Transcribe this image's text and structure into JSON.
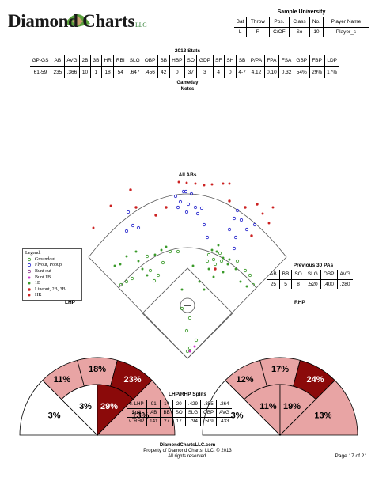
{
  "header": {
    "logo_main": "Diamond Charts",
    "logo_suffix": "LLC",
    "school": "Sample University",
    "info_headers": [
      "Bat",
      "Throw",
      "Pos.",
      "Class",
      "No.",
      "Player Name"
    ],
    "info_values": [
      "L",
      "R",
      "C/OF",
      "So",
      "10",
      "Player_s"
    ]
  },
  "season_stats": {
    "title": "2013 Stats",
    "headers": [
      "GP-GS",
      "AB",
      "AVG",
      "2B",
      "3B",
      "HR",
      "RBI",
      "SLG",
      "OBP",
      "BB",
      "HBP",
      "SO",
      "GDP",
      "SF",
      "SH",
      "SB",
      "P/PA",
      "FPA",
      "FSA",
      "GBP",
      "FBP",
      "LDP"
    ],
    "values": [
      "61-59",
      "235",
      ".366",
      "10",
      "1",
      "18",
      "54",
      ".647",
      ".456",
      "42",
      "0",
      "37",
      "3",
      "4",
      "0",
      "4-7",
      "4.12",
      "0.10",
      "0.32",
      "54%",
      "29%",
      "17%"
    ]
  },
  "gameday": {
    "line1": "Gameday",
    "line2": "Notes"
  },
  "spray_chart": {
    "title": "All ABs"
  },
  "legend": {
    "title": "Legend:",
    "items": [
      {
        "label": "Groundout",
        "color": "#3a9a2a",
        "symbol": "circle-open"
      },
      {
        "label": "Flyout, Popup",
        "color": "#2222cc",
        "symbol": "circle-open"
      },
      {
        "label": "Bunt out",
        "color": "#8a3a8a",
        "symbol": "circle-open"
      },
      {
        "label": "Bunt 1B",
        "color": "#cc33cc",
        "symbol": "star"
      },
      {
        "label": "1B",
        "color": "#3a9a2a",
        "symbol": "star"
      },
      {
        "label": "Lineout, 2B, 3B",
        "color": "#cc2222",
        "symbol": "dot"
      },
      {
        "label": "HR",
        "color": "#cc2222",
        "symbol": "star"
      }
    ]
  },
  "previous_pas": {
    "title": "Previous 30 PAs",
    "headers": [
      "AB",
      "BB",
      "SO",
      "SLG",
      "OBP",
      "AVG"
    ],
    "values": [
      "25",
      "5",
      "8",
      ".520",
      ".400",
      ".280"
    ]
  },
  "lhp": {
    "label": "LHP",
    "zones": {
      "outer_left": "11%",
      "outer_center": "18%",
      "outer_right": "23%",
      "inner_far_left": "3%",
      "inner_left": "3%",
      "inner_center": "29%",
      "inner_right": "13%"
    }
  },
  "rhp": {
    "label": "RHP",
    "zones": {
      "outer_left": "12%",
      "outer_center": "17%",
      "outer_right": "24%",
      "inner_far_left": "3%",
      "inner_left": "11%",
      "inner_center": "19%",
      "inner_right": "13%"
    }
  },
  "splits": {
    "title": "LHP/RHP Splits",
    "rows": [
      [
        "v. LHP",
        "91",
        "14",
        "20",
        ".429",
        ".355",
        ".264"
      ],
      [
        "Split",
        "AB",
        "BB",
        "SO",
        "SLG",
        "OBP",
        "AVG"
      ],
      [
        "v. RHP",
        "141",
        "27",
        "17",
        ".794",
        ".509",
        ".433"
      ]
    ]
  },
  "footer": {
    "site": "DiamondChartsLLC.com",
    "property": "Property of Diamond Charts, LLC. © 2013",
    "rights": "All rights reserved.",
    "page": "Page 17 of 21"
  },
  "colors": {
    "light_zone": "#e8a4a4",
    "dark_zone": "#8b0a0a",
    "white_zone": "#ffffff",
    "groundout": "#3a9a2a",
    "flyout": "#2222cc",
    "lineout": "#cc2222"
  }
}
